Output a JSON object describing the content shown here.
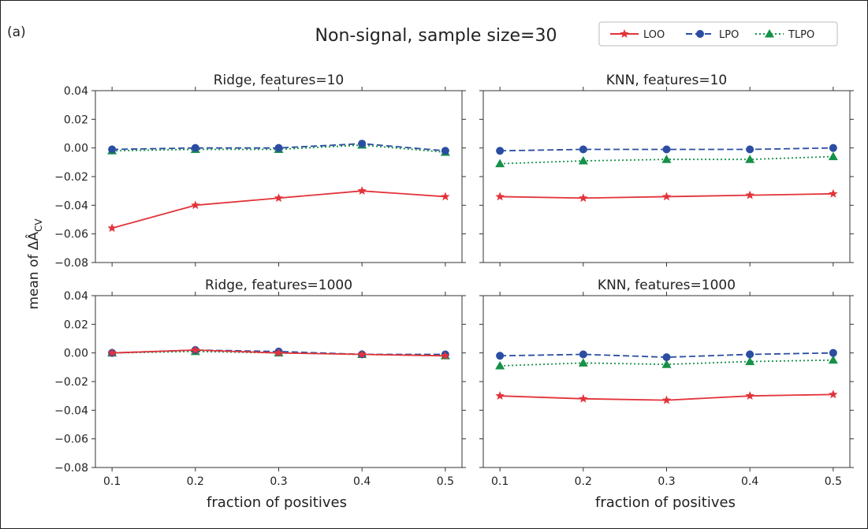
{
  "figure": {
    "panel_label": "(a)",
    "title": "Non-signal, sample size=30",
    "ylabel": "mean of ΔÂ",
    "ylabel_sub": "CV",
    "xlabel": "fraction of positives"
  },
  "legend": {
    "placement": "top-right",
    "entries": [
      {
        "name": "LOO",
        "color": "#e2333a",
        "dash": "solid",
        "marker": "star"
      },
      {
        "name": "LPO",
        "color": "#2b4ea2",
        "dash": "dashed",
        "marker": "circle"
      },
      {
        "name": "TLPO",
        "color": "#159148",
        "dash": "dotted",
        "marker": "triangle"
      }
    ]
  },
  "colors": {
    "LOO": "#e2333a",
    "LPO": "#2b4ea2",
    "TLPO": "#159148"
  },
  "chart_data": [
    {
      "type": "line",
      "title": "Ridge, features=10",
      "x": [
        0.1,
        0.2,
        0.3,
        0.4,
        0.5
      ],
      "xticks": [
        "0.1",
        "0.2",
        "0.3",
        "0.4",
        "0.5"
      ],
      "ylim": [
        -0.08,
        0.04
      ],
      "yticks": [
        "0.04",
        "0.02",
        "0.00",
        "−0.02",
        "−0.04",
        "−0.06",
        "−0.08"
      ],
      "grid": false,
      "series": [
        {
          "name": "LOO",
          "values": [
            -0.056,
            -0.04,
            -0.035,
            -0.03,
            -0.034
          ]
        },
        {
          "name": "LPO",
          "values": [
            -0.001,
            0.0,
            0.0,
            0.003,
            -0.002
          ]
        },
        {
          "name": "TLPO",
          "values": [
            -0.002,
            -0.001,
            -0.001,
            0.002,
            -0.003
          ]
        }
      ]
    },
    {
      "type": "line",
      "title": "KNN, features=10",
      "x": [
        0.1,
        0.2,
        0.3,
        0.4,
        0.5
      ],
      "xticks": [
        "0.1",
        "0.2",
        "0.3",
        "0.4",
        "0.5"
      ],
      "ylim": [
        -0.08,
        0.04
      ],
      "yticks": [],
      "grid": false,
      "series": [
        {
          "name": "LOO",
          "values": [
            -0.034,
            -0.035,
            -0.034,
            -0.033,
            -0.032
          ]
        },
        {
          "name": "LPO",
          "values": [
            -0.002,
            -0.001,
            -0.001,
            -0.001,
            0.0
          ]
        },
        {
          "name": "TLPO",
          "values": [
            -0.011,
            -0.009,
            -0.008,
            -0.008,
            -0.006
          ]
        }
      ]
    },
    {
      "type": "line",
      "title": "Ridge, features=1000",
      "x": [
        0.1,
        0.2,
        0.3,
        0.4,
        0.5
      ],
      "xticks": [
        "0.1",
        "0.2",
        "0.3",
        "0.4",
        "0.5"
      ],
      "ylim": [
        -0.08,
        0.04
      ],
      "yticks": [
        "0.04",
        "0.02",
        "0.00",
        "−0.02",
        "−0.04",
        "−0.06",
        "−0.08"
      ],
      "grid": false,
      "series": [
        {
          "name": "LOO",
          "values": [
            0.0,
            0.002,
            0.0,
            -0.001,
            -0.002
          ]
        },
        {
          "name": "LPO",
          "values": [
            0.0,
            0.002,
            0.001,
            -0.001,
            -0.001
          ]
        },
        {
          "name": "TLPO",
          "values": [
            0.0,
            0.001,
            0.0,
            -0.001,
            -0.002
          ]
        }
      ]
    },
    {
      "type": "line",
      "title": "KNN, features=1000",
      "x": [
        0.1,
        0.2,
        0.3,
        0.4,
        0.5
      ],
      "xticks": [
        "0.1",
        "0.2",
        "0.3",
        "0.4",
        "0.5"
      ],
      "ylim": [
        -0.08,
        0.04
      ],
      "yticks": [],
      "grid": false,
      "series": [
        {
          "name": "LOO",
          "values": [
            -0.03,
            -0.032,
            -0.033,
            -0.03,
            -0.029
          ]
        },
        {
          "name": "LPO",
          "values": [
            -0.002,
            -0.001,
            -0.003,
            -0.001,
            0.0
          ]
        },
        {
          "name": "TLPO",
          "values": [
            -0.009,
            -0.007,
            -0.008,
            -0.006,
            -0.005
          ]
        }
      ]
    }
  ]
}
